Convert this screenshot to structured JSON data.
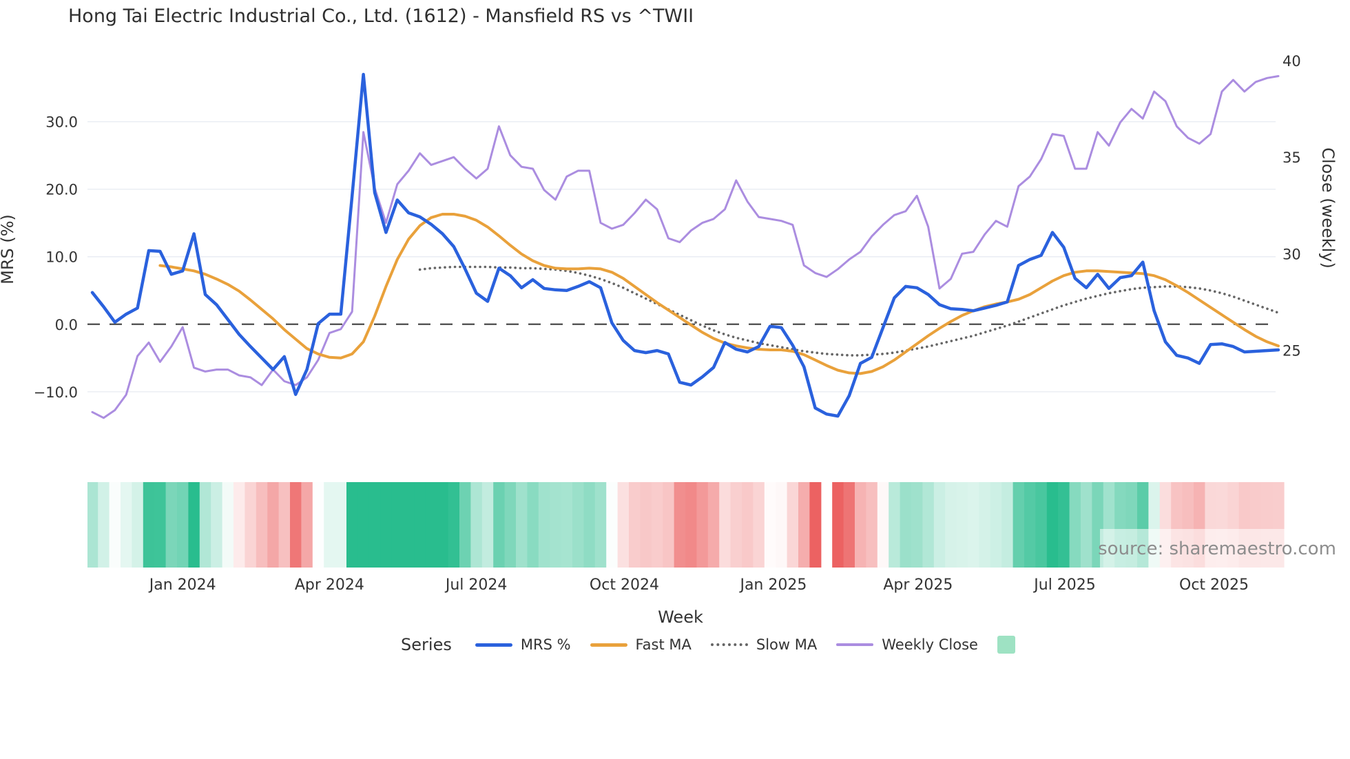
{
  "title": "Hong Tai Electric Industrial Co., Ltd. (1612) - Mansfield RS vs ^TWII",
  "watermark": "source: sharemaestro.com",
  "x_axis": {
    "label": "Week"
  },
  "y_left": {
    "label": "MRS (%)",
    "range": [
      -19.3,
      41.9
    ],
    "ticks": [
      {
        "v": 30,
        "label": "30.0"
      },
      {
        "v": 20,
        "label": "20.0"
      },
      {
        "v": 10,
        "label": "10.0"
      },
      {
        "v": 0,
        "label": "0.0",
        "zero": true
      },
      {
        "v": -10,
        "label": "−10.0"
      }
    ]
  },
  "y_right": {
    "label": "Close (weekly)",
    "range": [
      19.6,
      41.0
    ],
    "ticks": [
      {
        "v": 40,
        "label": "40"
      },
      {
        "v": 35,
        "label": "35"
      },
      {
        "v": 30,
        "label": "30"
      },
      {
        "v": 25,
        "label": "25"
      }
    ]
  },
  "legend": {
    "title": "Series",
    "items": [
      {
        "label": "MRS %",
        "swatch": "line",
        "color": "#2a61dd"
      },
      {
        "label": "Fast MA",
        "swatch": "line",
        "color": "#e9a13b"
      },
      {
        "label": "Slow MA",
        "swatch": "dot",
        "color": "#666666"
      },
      {
        "label": "Weekly Close",
        "swatch": "line-thin",
        "color": "#ab8de0"
      },
      {
        "label": "",
        "swatch": "square",
        "color": "#9ee2c3"
      }
    ]
  },
  "colors": {
    "grid": "#e9ecf3",
    "zero_line": "#4a4a4a",
    "tick_text": "#333333",
    "watermark_text": "#8d8d8d"
  },
  "chart_data": {
    "type": "line",
    "title": "Hong Tai Electric Industrial Co., Ltd. (1612) - Mansfield RS vs ^TWII",
    "xlabel": "Week",
    "ylabel_left": "MRS (%)",
    "ylabel_right": "Close (weekly)",
    "n_weeks": 106,
    "x_ticks": [
      {
        "label": "Jan 2024",
        "week": 8.0
      },
      {
        "label": "Apr 2024",
        "week": 21.0
      },
      {
        "label": "Jul 2024",
        "week": 34.0
      },
      {
        "label": "Oct 2024",
        "week": 47.1
      },
      {
        "label": "Jan 2025",
        "week": 60.3
      },
      {
        "label": "Apr 2025",
        "week": 73.1
      },
      {
        "label": "Jul 2025",
        "week": 86.1
      },
      {
        "label": "Oct 2025",
        "week": 99.3
      }
    ],
    "series": [
      {
        "name": "MRS %",
        "axis": "left",
        "color": "#2a61dd",
        "width": 4.5,
        "dash": "solid",
        "draw_order": 4,
        "values": [
          4.7,
          2.6,
          0.3,
          1.5,
          2.4,
          10.9,
          10.8,
          7.4,
          7.9,
          13.4,
          4.4,
          2.9,
          0.7,
          -1.5,
          -3.3,
          -5.0,
          -6.7,
          -4.8,
          -10.4,
          -6.7,
          0.1,
          1.5,
          1.5,
          19.0,
          37.0,
          19.5,
          13.6,
          18.4,
          16.5,
          15.9,
          14.8,
          13.4,
          11.5,
          8.2,
          4.6,
          3.4,
          8.3,
          7.2,
          5.4,
          6.6,
          5.3,
          5.1,
          5.0,
          5.6,
          6.3,
          5.4,
          0.2,
          -2.4,
          -3.9,
          -4.2,
          -3.9,
          -4.4,
          -8.6,
          -9.0,
          -7.8,
          -6.4,
          -2.7,
          -3.7,
          -4.1,
          -3.3,
          -0.3,
          -0.5,
          -3.1,
          -6.3,
          -12.4,
          -13.3,
          -13.6,
          -10.6,
          -5.8,
          -4.9,
          -0.5,
          3.9,
          5.6,
          5.4,
          4.4,
          2.9,
          2.3,
          2.2,
          2.0,
          2.4,
          2.8,
          3.3,
          8.7,
          9.6,
          10.2,
          13.6,
          11.4,
          6.8,
          5.4,
          7.4,
          5.3,
          6.9,
          7.2,
          9.2,
          2.0,
          -2.6,
          -4.6,
          -5.0,
          -5.8,
          -3.0,
          -2.9,
          -3.3,
          -4.1,
          -4.0,
          -3.9,
          -3.8
        ]
      },
      {
        "name": "Fast MA",
        "axis": "left",
        "color": "#e9a13b",
        "width": 4,
        "dash": "solid",
        "draw_order": 3,
        "values": [
          null,
          null,
          null,
          null,
          null,
          null,
          8.7,
          8.5,
          8.2,
          7.9,
          7.4,
          6.7,
          5.9,
          4.9,
          3.6,
          2.2,
          0.8,
          -0.8,
          -2.2,
          -3.6,
          -4.4,
          -4.9,
          -5.0,
          -4.4,
          -2.6,
          1.2,
          5.6,
          9.6,
          12.6,
          14.6,
          15.8,
          16.3,
          16.3,
          16.0,
          15.4,
          14.4,
          13.1,
          11.7,
          10.4,
          9.4,
          8.7,
          8.3,
          8.2,
          8.2,
          8.3,
          8.2,
          7.7,
          6.8,
          5.6,
          4.4,
          3.2,
          2.1,
          1.0,
          -0.1,
          -1.2,
          -2.1,
          -2.8,
          -3.2,
          -3.5,
          -3.7,
          -3.8,
          -3.8,
          -4.0,
          -4.5,
          -5.3,
          -6.1,
          -6.8,
          -7.2,
          -7.3,
          -7.0,
          -6.3,
          -5.3,
          -4.1,
          -2.9,
          -1.7,
          -0.6,
          0.4,
          1.3,
          2.0,
          2.6,
          3.0,
          3.3,
          3.7,
          4.4,
          5.4,
          6.4,
          7.2,
          7.7,
          7.9,
          7.9,
          7.8,
          7.7,
          7.6,
          7.5,
          7.2,
          6.6,
          5.7,
          4.7,
          3.6,
          2.5,
          1.4,
          0.3,
          -0.8,
          -1.8,
          -2.6,
          -3.2
        ]
      },
      {
        "name": "Slow MA",
        "axis": "left",
        "color": "#666666",
        "width": 3.6,
        "dash": "dot",
        "draw_order": 1,
        "values": [
          null,
          null,
          null,
          null,
          null,
          null,
          null,
          null,
          null,
          null,
          null,
          null,
          null,
          null,
          null,
          null,
          null,
          null,
          null,
          null,
          null,
          null,
          null,
          null,
          null,
          null,
          null,
          null,
          null,
          8.1,
          8.3,
          8.4,
          8.5,
          8.5,
          8.5,
          8.5,
          8.4,
          8.4,
          8.3,
          8.3,
          8.2,
          8.1,
          7.9,
          7.6,
          7.2,
          6.7,
          6.1,
          5.4,
          4.6,
          3.8,
          3.0,
          2.2,
          1.4,
          0.6,
          -0.2,
          -0.9,
          -1.5,
          -2.0,
          -2.4,
          -2.8,
          -3.1,
          -3.4,
          -3.7,
          -4.0,
          -4.2,
          -4.4,
          -4.5,
          -4.6,
          -4.6,
          -4.5,
          -4.4,
          -4.2,
          -3.9,
          -3.6,
          -3.3,
          -2.9,
          -2.5,
          -2.1,
          -1.7,
          -1.2,
          -0.7,
          -0.2,
          0.4,
          1.0,
          1.6,
          2.2,
          2.8,
          3.3,
          3.8,
          4.2,
          4.6,
          4.9,
          5.2,
          5.4,
          5.5,
          5.6,
          5.6,
          5.5,
          5.3,
          5.0,
          4.6,
          4.1,
          3.5,
          2.9,
          2.3,
          1.7
        ]
      },
      {
        "name": "Weekly Close",
        "axis": "right",
        "color": "#ab8de0",
        "width": 3,
        "dash": "solid",
        "draw_order": 2,
        "values": [
          21.8,
          21.5,
          21.9,
          22.7,
          24.7,
          25.4,
          24.4,
          25.2,
          26.2,
          24.1,
          23.9,
          24.0,
          24.0,
          23.7,
          23.6,
          23.2,
          24.0,
          23.4,
          23.2,
          23.6,
          24.5,
          25.9,
          26.1,
          27.0,
          36.3,
          33.4,
          31.6,
          33.6,
          34.3,
          35.2,
          34.6,
          34.8,
          35.0,
          34.4,
          33.9,
          34.4,
          36.6,
          35.1,
          34.5,
          34.4,
          33.3,
          32.8,
          34.0,
          34.3,
          34.3,
          31.6,
          31.3,
          31.5,
          32.1,
          32.8,
          32.3,
          30.8,
          30.6,
          31.2,
          31.6,
          31.8,
          32.3,
          33.8,
          32.7,
          31.9,
          31.8,
          31.7,
          31.5,
          29.4,
          29.0,
          28.8,
          29.2,
          29.7,
          30.1,
          30.9,
          31.5,
          32.0,
          32.2,
          33.0,
          31.4,
          28.2,
          28.7,
          30.0,
          30.1,
          31.0,
          31.7,
          31.4,
          33.5,
          34.0,
          34.9,
          36.2,
          36.1,
          34.4,
          34.4,
          36.3,
          35.6,
          36.8,
          37.5,
          37.0,
          38.4,
          37.9,
          36.6,
          36.0,
          35.7,
          36.2,
          38.4,
          39.0,
          38.4,
          38.9,
          39.1,
          39.2
        ]
      }
    ],
    "heatmap": {
      "derived_from": "MRS %",
      "gap_weeks": [
        65
      ],
      "max_abs": 12,
      "positive_color": "#29bd8e",
      "negative_color": "#ec6262"
    }
  }
}
